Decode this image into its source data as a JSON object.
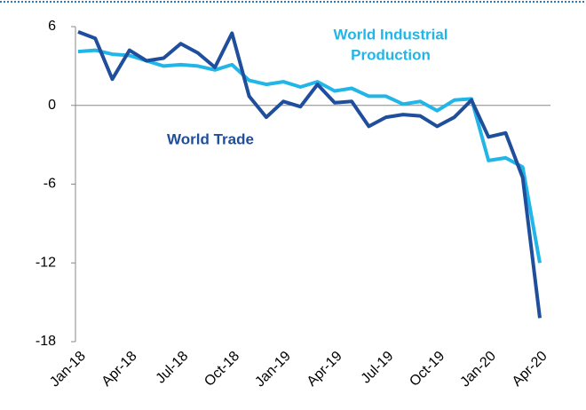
{
  "chart_data": {
    "type": "line",
    "categories": [
      "Jan-18",
      null,
      null,
      "Apr-18",
      null,
      null,
      "Jul-18",
      null,
      null,
      "Oct-18",
      null,
      null,
      "Jan-19",
      null,
      null,
      "Apr-19",
      null,
      null,
      "Jul-19",
      null,
      null,
      "Oct-19",
      null,
      null,
      "Jan-20",
      null,
      null,
      "Apr-20"
    ],
    "series": [
      {
        "name": "World Trade",
        "color": "#1f4e9c",
        "values": [
          5.6,
          5.1,
          2.0,
          4.2,
          3.4,
          3.6,
          4.7,
          4.0,
          2.9,
          5.5,
          0.7,
          -0.9,
          0.3,
          -0.1,
          1.6,
          0.2,
          0.3,
          -1.6,
          -0.9,
          -0.7,
          -0.8,
          -1.6,
          -0.9,
          0.4,
          -2.4,
          -2.1,
          -5.5,
          -16.2
        ]
      },
      {
        "name": "World Industrial Production",
        "color": "#22b5e8",
        "values": [
          4.1,
          4.2,
          3.9,
          3.8,
          3.4,
          3.0,
          3.1,
          3.0,
          2.7,
          3.1,
          1.9,
          1.6,
          1.8,
          1.4,
          1.8,
          1.1,
          1.3,
          0.7,
          0.7,
          0.1,
          0.3,
          -0.4,
          0.4,
          0.5,
          -4.2,
          -4.0,
          -4.7,
          -12.0
        ]
      }
    ],
    "annotations": [
      {
        "text": "World Industrial",
        "series": 1
      },
      {
        "text": "Production",
        "series": 1
      },
      {
        "text": "World Trade",
        "series": 0
      }
    ],
    "ylim": [
      -18,
      6
    ],
    "yticks": [
      6,
      0,
      -6,
      -12,
      -18
    ],
    "grid": false
  }
}
